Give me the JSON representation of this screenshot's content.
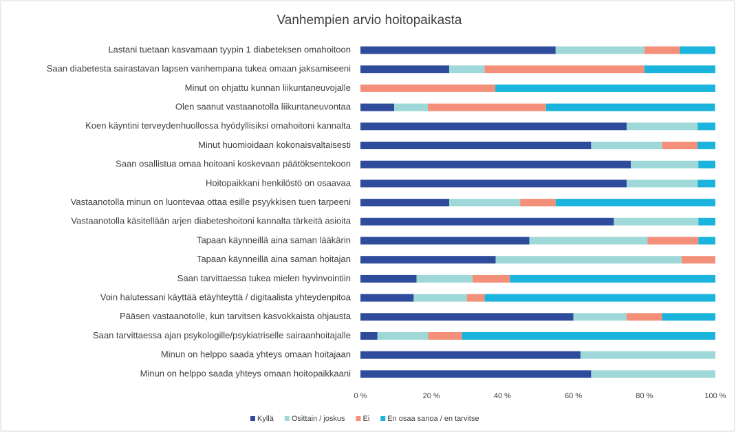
{
  "chart_data": {
    "type": "stacked_barh",
    "title": "Vanhempien arvio hoitopaikasta",
    "categories": [
      "Lastani tuetaan kasvamaan tyypin 1 diabeteksen omahoitoon",
      "Saan diabetesta sairastavan lapsen vanhempana tukea omaan jaksamiseeni",
      "Minut on ohjattu kunnan liikuntaneuvojalle",
      "Olen saanut vastaanotolla liikuntaneuvontaa",
      "Koen käyntini terveydenhuollossa hyödyllisiksi omahoitoni kannalta",
      "Minut huomioidaan kokonaisvaltaisesti",
      "Saan osallistua omaa hoitoani koskevaan päätöksentekoon",
      "Hoitopaikkani henkilöstö on osaavaa",
      "Vastaanotolla minun on luontevaa ottaa esille psyykkisen tuen tarpeeni",
      "Vastaanotolla käsitellään arjen diabeteshoitoni kannalta tärkeitä asioita",
      "Tapaan käynneillä aina saman lääkärin",
      "Tapaan käynneillä aina saman hoitajan",
      "Saan tarvittaessa tukea mielen hyvinvointiin",
      "Voin halutessani käyttää etäyhteyttä / digitaalista yhteydenpitoa",
      "Pääsen vastaanotolle, kun tarvitsen kasvokkaista ohjausta",
      "Saan tarvittaessa ajan psykologille/psykiatriselle sairaanhoitajalle",
      "Minun on helppo saada yhteys omaan hoitajaan",
      "Minun on helppo saada yhteys omaan hoitopaikkaani"
    ],
    "series": [
      {
        "name": "Kyllä",
        "color": "#2f4b9c",
        "values": [
          55,
          25,
          0,
          9.5,
          75,
          65,
          76.2,
          75,
          25,
          71.4,
          47.6,
          38.1,
          15.8,
          15,
          60,
          4.8,
          62,
          65
        ]
      },
      {
        "name": "Osittain / joskus",
        "color": "#9fd8d8",
        "values": [
          25,
          10,
          0,
          9.5,
          20,
          20,
          19,
          20,
          20,
          23.8,
          33.3,
          52.4,
          15.8,
          15,
          15,
          14.3,
          38,
          35
        ]
      },
      {
        "name": "Ei",
        "color": "#f4907a",
        "values": [
          10,
          45,
          38,
          33.3,
          0,
          10,
          0,
          0,
          10,
          0,
          14.3,
          9.5,
          10.5,
          5,
          10,
          9.5,
          0,
          0
        ]
      },
      {
        "name": "En osaa sanoa / en tarvitse",
        "color": "#1ab4dc",
        "values": [
          10,
          20,
          62,
          47.6,
          5,
          5,
          4.8,
          5,
          45,
          4.8,
          4.8,
          0,
          57.9,
          65,
          15,
          71.4,
          0,
          0
        ]
      }
    ],
    "xlim": [
      0,
      100
    ],
    "xticks": [
      {
        "value": 0,
        "label": "0 %"
      },
      {
        "value": 20,
        "label": "20 %"
      },
      {
        "value": 40,
        "label": "40 %"
      },
      {
        "value": 60,
        "label": "60 %"
      },
      {
        "value": 80,
        "label": "80 %"
      },
      {
        "value": 100,
        "label": "100 %"
      }
    ],
    "legend": "bottom"
  }
}
